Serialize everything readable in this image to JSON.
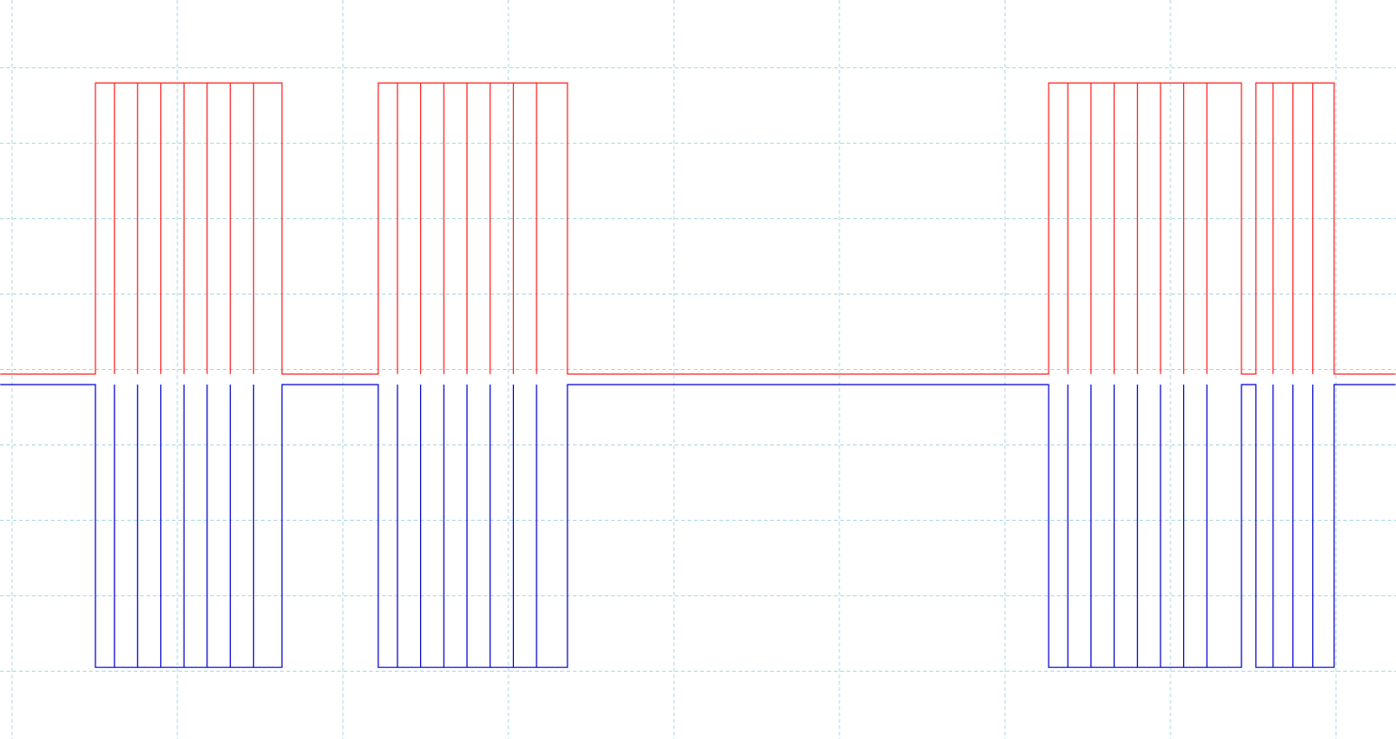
{
  "chart_data": {
    "type": "line",
    "x": [
      -0.07,
      0.505,
      0.505,
      0.62,
      0.62,
      0.62,
      0.76,
      0.76,
      0.76,
      0.9,
      0.9,
      0.9,
      1.04,
      1.04,
      1.04,
      1.18,
      1.18,
      1.18,
      1.32,
      1.32,
      1.32,
      1.46,
      1.46,
      1.46,
      1.632,
      1.632,
      2.214,
      2.214,
      2.33,
      2.33,
      2.33,
      2.47,
      2.47,
      2.47,
      2.61,
      2.61,
      2.61,
      2.75,
      2.75,
      2.75,
      2.89,
      2.89,
      2.89,
      3.03,
      3.03,
      3.03,
      3.17,
      3.17,
      3.17,
      3.357,
      3.357,
      6.264,
      6.264,
      6.38,
      6.38,
      6.38,
      6.52,
      6.52,
      6.52,
      6.66,
      6.66,
      6.66,
      6.8,
      6.8,
      6.8,
      6.94,
      6.94,
      6.94,
      7.08,
      7.08,
      7.08,
      7.22,
      7.22,
      7.22,
      7.429,
      7.429,
      7.516,
      7.516,
      7.62,
      7.62,
      7.62,
      7.74,
      7.74,
      7.74,
      7.86,
      7.86,
      7.86,
      7.989,
      7.989,
      8.36
    ],
    "series": [
      {
        "color": "#ff2020",
        "values": [
          -0.06,
          -0.06,
          3.8,
          3.8,
          -0.06,
          3.8,
          3.8,
          -0.06,
          3.8,
          3.8,
          -0.06,
          3.8,
          3.8,
          -0.06,
          3.8,
          3.8,
          -0.06,
          3.8,
          3.8,
          -0.06,
          3.8,
          3.8,
          -0.06,
          3.8,
          3.8,
          -0.06,
          -0.06,
          3.8,
          3.8,
          -0.06,
          3.8,
          3.8,
          -0.06,
          3.8,
          3.8,
          -0.06,
          3.8,
          3.8,
          -0.06,
          3.8,
          3.8,
          -0.06,
          3.8,
          3.8,
          -0.06,
          3.8,
          3.8,
          -0.06,
          3.8,
          3.8,
          -0.06,
          -0.06,
          3.8,
          3.8,
          -0.06,
          3.8,
          3.8,
          -0.06,
          3.8,
          3.8,
          -0.06,
          3.8,
          3.8,
          -0.06,
          3.8,
          3.8,
          -0.06,
          3.8,
          3.8,
          -0.06,
          3.8,
          3.8,
          -0.06,
          3.8,
          3.8,
          -0.06,
          -0.06,
          3.8,
          3.8,
          -0.06,
          3.8,
          3.8,
          -0.06,
          3.8,
          3.8,
          -0.06,
          3.8,
          3.8,
          -0.06,
          -0.06
        ]
      },
      {
        "color": "#0000d0",
        "values": [
          -0.2,
          -0.2,
          -3.95,
          -3.95,
          -0.2,
          -3.95,
          -3.95,
          -0.2,
          -3.95,
          -3.95,
          -0.2,
          -3.95,
          -3.95,
          -0.2,
          -3.95,
          -3.95,
          -0.2,
          -3.95,
          -3.95,
          -0.2,
          -3.95,
          -3.95,
          -0.2,
          -3.95,
          -3.95,
          -0.2,
          -0.2,
          -3.95,
          -3.95,
          -0.2,
          -3.95,
          -3.95,
          -0.2,
          -3.95,
          -3.95,
          -0.2,
          -3.95,
          -3.95,
          -0.2,
          -3.95,
          -3.95,
          -0.2,
          -3.95,
          -3.95,
          -0.2,
          -3.95,
          -3.95,
          -0.2,
          -3.95,
          -3.95,
          -0.2,
          -0.2,
          -3.95,
          -3.95,
          -0.2,
          -3.95,
          -3.95,
          -0.2,
          -3.95,
          -3.95,
          -0.2,
          -3.95,
          -3.95,
          -0.2,
          -3.95,
          -3.95,
          -0.2,
          -3.95,
          -3.95,
          -0.2,
          -3.95,
          -3.95,
          -0.2,
          -3.95,
          -3.95,
          -0.2,
          -0.2,
          -3.95,
          -3.95,
          -0.2,
          -3.95,
          -3.95,
          -0.2,
          -3.95,
          -3.95,
          -0.2,
          -3.95,
          -3.95,
          -0.2,
          -0.2
        ]
      }
    ],
    "xlim": [
      -0.0714,
      8.3626
    ],
    "ylim": [
      -4.9,
      4.9
    ],
    "xticks": [
      0,
      1,
      2,
      3,
      4,
      5,
      6,
      7,
      8
    ],
    "yticks": [
      -4,
      -3,
      -2,
      -1,
      0,
      1,
      2,
      3,
      4
    ],
    "grid": true
  }
}
